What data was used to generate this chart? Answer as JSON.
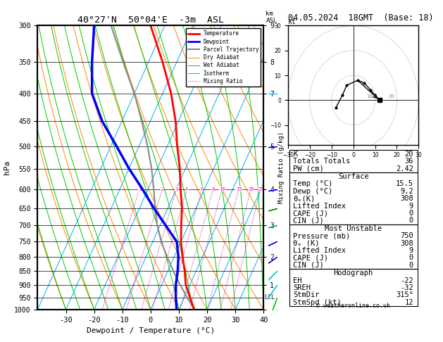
{
  "title": "40°27'N  50°04'E  -3m  ASL",
  "title_right": "04.05.2024  18GMT  (Base: 18)",
  "xlabel": "Dewpoint / Temperature (°C)",
  "ylabel_left": "hPa",
  "lcl_pressure": 950,
  "mixing_ratio_values": [
    1,
    2,
    3,
    4,
    6,
    8,
    10,
    15,
    20,
    25
  ],
  "isotherm_color": "#00aaff",
  "dry_adiabat_color": "#ff8800",
  "wet_adiabat_color": "#00cc00",
  "mixing_ratio_color": "#ff00aa",
  "temperature_color": "#ff0000",
  "dewpoint_color": "#0000ff",
  "parcel_color": "#888888",
  "temperature_data": [
    [
      1000,
      15.5
    ],
    [
      950,
      12.0
    ],
    [
      900,
      8.5
    ],
    [
      850,
      6.0
    ],
    [
      800,
      3.0
    ],
    [
      750,
      0.0
    ],
    [
      700,
      -2.5
    ],
    [
      650,
      -5.0
    ],
    [
      600,
      -8.5
    ],
    [
      550,
      -12.0
    ],
    [
      500,
      -16.5
    ],
    [
      450,
      -21.0
    ],
    [
      400,
      -27.0
    ],
    [
      350,
      -35.0
    ],
    [
      300,
      -45.0
    ]
  ],
  "dewpoint_data": [
    [
      1000,
      9.2
    ],
    [
      950,
      7.0
    ],
    [
      900,
      5.0
    ],
    [
      850,
      3.5
    ],
    [
      800,
      1.5
    ],
    [
      750,
      -1.5
    ],
    [
      700,
      -8.0
    ],
    [
      650,
      -15.0
    ],
    [
      600,
      -22.0
    ],
    [
      550,
      -30.0
    ],
    [
      500,
      -38.0
    ],
    [
      450,
      -47.0
    ],
    [
      400,
      -55.0
    ],
    [
      350,
      -60.0
    ],
    [
      300,
      -65.0
    ]
  ],
  "parcel_data": [
    [
      1000,
      15.5
    ],
    [
      950,
      11.0
    ],
    [
      900,
      6.5
    ],
    [
      850,
      2.0
    ],
    [
      800,
      -2.5
    ],
    [
      750,
      -7.0
    ],
    [
      700,
      -11.0
    ],
    [
      650,
      -14.5
    ],
    [
      600,
      -18.0
    ],
    [
      550,
      -22.0
    ],
    [
      500,
      -27.0
    ],
    [
      450,
      -33.0
    ],
    [
      400,
      -40.0
    ],
    [
      350,
      -49.0
    ],
    [
      300,
      -59.0
    ]
  ],
  "info_data": {
    "K": 20,
    "Totals_Totals": 36,
    "PW_cm": 2.42,
    "Surface_Temp": 15.5,
    "Surface_Dewp": 9.2,
    "Surface_thetae": 308,
    "Lifted_Index": 9,
    "CAPE": 0,
    "CIN": 0,
    "MU_Pressure": 750,
    "MU_thetae": 308,
    "MU_LI": 9,
    "MU_CAPE": 0,
    "MU_CIN": 0,
    "EH": -22,
    "SREH": -32,
    "StmDir": 315,
    "StmSpd": 12
  },
  "wind_data": [
    {
      "p": 1000,
      "color": "#00cc00",
      "dir": 180,
      "spd": 10
    },
    {
      "p": 950,
      "color": "#00cc00",
      "dir": 200,
      "spd": 12
    },
    {
      "p": 900,
      "color": "#00cccc",
      "dir": 215,
      "spd": 15
    },
    {
      "p": 850,
      "color": "#00cccc",
      "dir": 225,
      "spd": 15
    },
    {
      "p": 800,
      "color": "#0000ff",
      "dir": 235,
      "spd": 20
    },
    {
      "p": 750,
      "color": "#0000ff",
      "dir": 245,
      "spd": 20
    },
    {
      "p": 700,
      "color": "#00aaaa",
      "dir": 255,
      "spd": 25
    },
    {
      "p": 650,
      "color": "#008800",
      "dir": 255,
      "spd": 25
    },
    {
      "p": 600,
      "color": "#0000ff",
      "dir": 260,
      "spd": 30
    },
    {
      "p": 500,
      "color": "#0000ff",
      "dir": 265,
      "spd": 35
    },
    {
      "p": 400,
      "color": "#00ccff",
      "dir": 270,
      "spd": 40
    },
    {
      "p": 300,
      "color": "#ffaa00",
      "dir": 280,
      "spd": 45
    }
  ],
  "pmin": 300,
  "pmax": 1000,
  "Tmin": -40,
  "Tmax": 40,
  "skew": 45.0,
  "pressure_levels": [
    300,
    350,
    400,
    450,
    500,
    550,
    600,
    650,
    700,
    750,
    800,
    850,
    900,
    950,
    1000
  ],
  "km_data": [
    [
      1000,
      0
    ],
    [
      900,
      1
    ],
    [
      800,
      2
    ],
    [
      700,
      3
    ],
    [
      600,
      4
    ],
    [
      500,
      5
    ],
    [
      400,
      7
    ],
    [
      350,
      8
    ],
    [
      300,
      9
    ]
  ],
  "hodo_u": [
    -8,
    -5,
    -3,
    2,
    5,
    8,
    12
  ],
  "hodo_v": [
    -3,
    2,
    6,
    8,
    7,
    4,
    0
  ],
  "storm_u": 12,
  "storm_v": 0,
  "storm_src_u": 2,
  "storm_src_v": 8
}
